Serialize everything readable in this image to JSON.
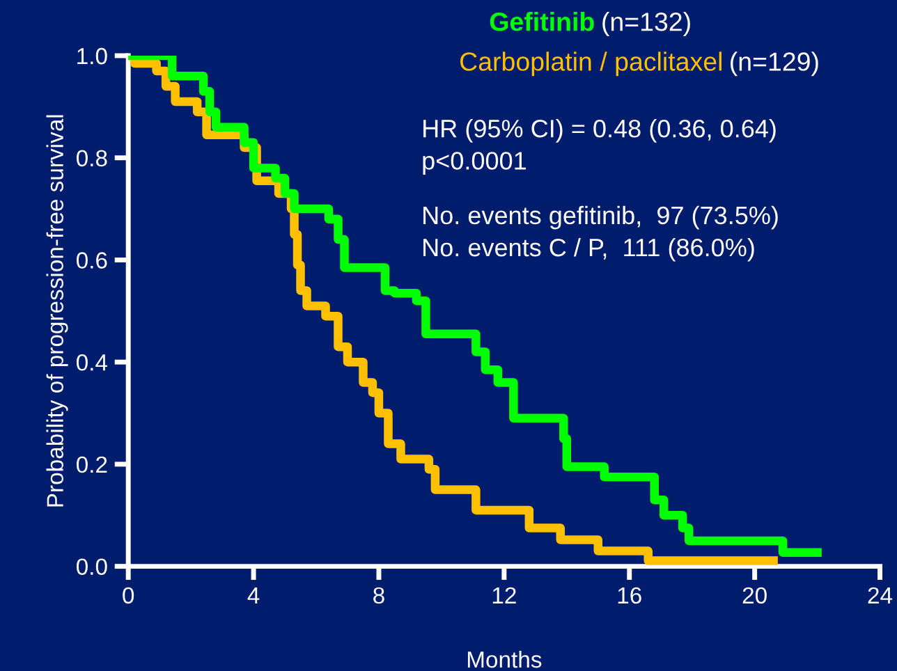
{
  "chart_data": {
    "type": "step",
    "xlabel": "Months",
    "ylabel": "Probability of progression-free survival",
    "xlim": [
      0,
      24
    ],
    "xticks": [
      0,
      4,
      8,
      12,
      16,
      20,
      24
    ],
    "ylim": [
      0,
      1.0
    ],
    "yticks": [
      {
        "value": 0,
        "label": "0.0"
      },
      {
        "value": 0.2,
        "label": "0.2"
      },
      {
        "value": 0.4,
        "label": "0.4"
      },
      {
        "value": 0.6,
        "label": "0.6"
      },
      {
        "value": 0.8,
        "label": "0.8"
      },
      {
        "value": 1.0,
        "label": "1.0"
      }
    ],
    "grid": false,
    "legend": "top",
    "series": [
      {
        "name": "Gefitinib",
        "color": "#00ff00",
        "x": [
          0,
          1.4,
          2.4,
          2.6,
          2.8,
          3.7,
          4.0,
          4.7,
          5.0,
          5.3,
          6.4,
          6.7,
          6.9,
          8.2,
          8.5,
          9.2,
          9.5,
          11.1,
          11.4,
          11.8,
          12.3,
          13.9,
          14.0,
          15.2,
          16.8,
          17.1,
          17.7,
          17.9,
          20.9,
          22.0
        ],
        "values": [
          1.0,
          0.96,
          0.93,
          0.89,
          0.86,
          0.83,
          0.78,
          0.76,
          0.73,
          0.7,
          0.68,
          0.64,
          0.585,
          0.54,
          0.535,
          0.52,
          0.455,
          0.42,
          0.385,
          0.36,
          0.29,
          0.25,
          0.195,
          0.175,
          0.13,
          0.1,
          0.075,
          0.05,
          0.027,
          0.027
        ]
      },
      {
        "name": "Carboplatin / paclitaxel",
        "color": "#ffc000",
        "x": [
          0,
          0.2,
          0.9,
          1.2,
          1.5,
          2.2,
          2.5,
          3.7,
          4.1,
          4.8,
          5.2,
          5.3,
          5.4,
          5.5,
          5.7,
          6.3,
          6.7,
          7.0,
          7.5,
          7.8,
          8.0,
          8.3,
          8.7,
          9.6,
          9.8,
          11.1,
          12.8,
          13.8,
          15.0,
          16.6,
          20.6
        ],
        "values": [
          1.0,
          0.985,
          0.97,
          0.94,
          0.91,
          0.89,
          0.845,
          0.82,
          0.755,
          0.73,
          0.7,
          0.65,
          0.59,
          0.54,
          0.51,
          0.49,
          0.43,
          0.4,
          0.36,
          0.34,
          0.3,
          0.24,
          0.21,
          0.19,
          0.15,
          0.11,
          0.075,
          0.052,
          0.03,
          0.011,
          0.011
        ]
      }
    ],
    "annotations": [
      "(n=132)",
      "(n=129)",
      "HR (95% CI) = 0.48 (0.36, 0.64)",
      "p<0.0001",
      "No. events gefitinib,  97 (73.5%)",
      "No. events C / P,  111 (86.0%)"
    ]
  }
}
